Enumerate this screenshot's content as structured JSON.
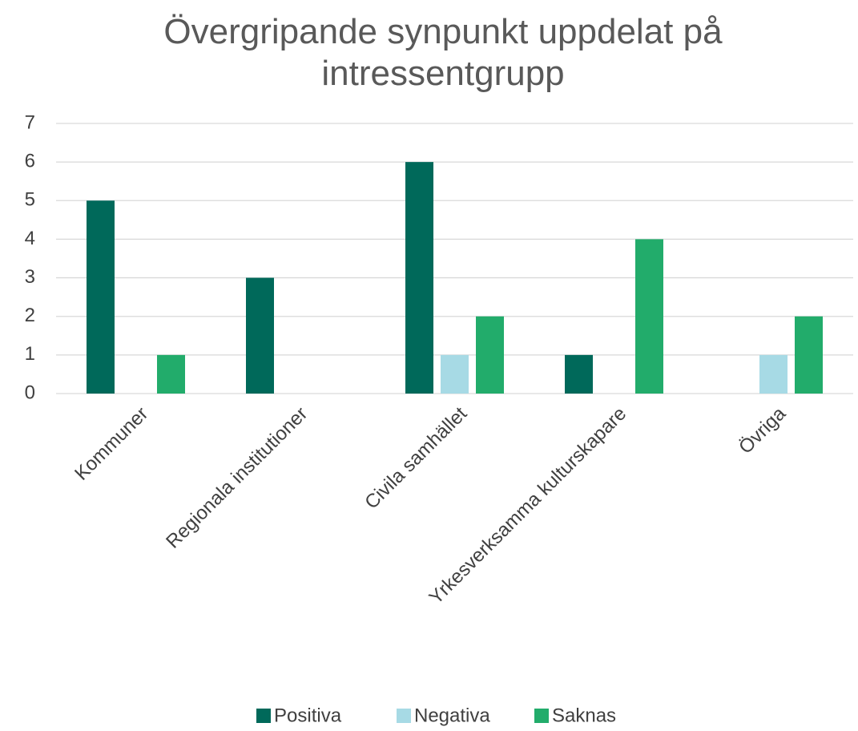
{
  "chart_data": {
    "type": "bar",
    "title": "Övergripande synpunkt uppdelat på intressentgrupp",
    "categories": [
      "Kommuner",
      "Regionala institutioner",
      "Civila samhället",
      "Yrkesverksamma kulturskapare",
      "Övriga"
    ],
    "series": [
      {
        "name": "Positiva",
        "color": "#00695a",
        "values": [
          5,
          3,
          6,
          1,
          0
        ]
      },
      {
        "name": "Negativa",
        "color": "#a7dae5",
        "values": [
          0,
          0,
          1,
          0,
          1
        ]
      },
      {
        "name": "Saknas",
        "color": "#22ac6b",
        "values": [
          1,
          0,
          2,
          4,
          2
        ]
      }
    ],
    "ylim": [
      0,
      7
    ],
    "yticks": [
      0,
      1,
      2,
      3,
      4,
      5,
      6,
      7
    ],
    "grid": true,
    "legend": "bottom"
  }
}
